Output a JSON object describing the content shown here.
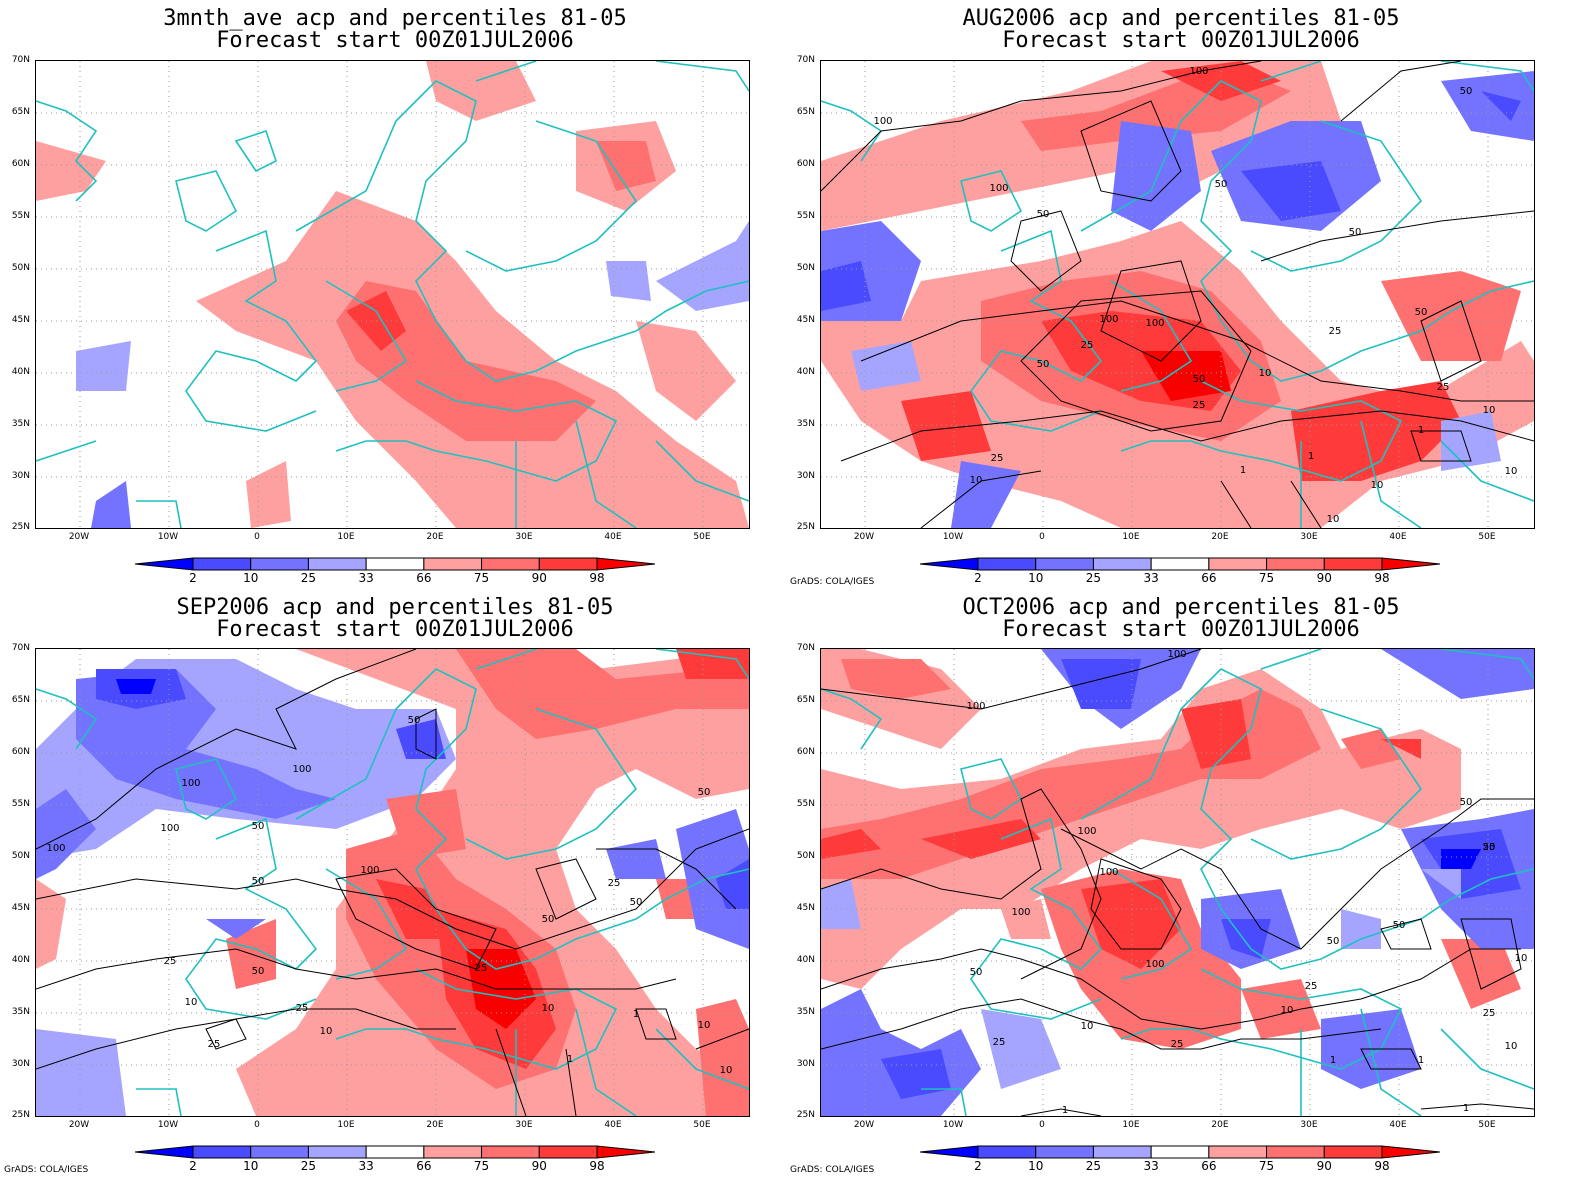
{
  "panels": [
    {
      "id": "p1",
      "title_line1": "3mnth_ave acp and percentiles 81-05",
      "title_line2": "Forecast start 00Z01JUL2006",
      "credit": ""
    },
    {
      "id": "p2",
      "title_line1": "AUG2006 acp and percentiles 81-05",
      "title_line2": "Forecast start 00Z01JUL2006",
      "credit": "GrADS: COLA/IGES"
    },
    {
      "id": "p3",
      "title_line1": "SEP2006 acp and percentiles 81-05",
      "title_line2": "Forecast start 00Z01JUL2006",
      "credit": "GrADS: COLA/IGES"
    },
    {
      "id": "p4",
      "title_line1": "OCT2006 acp and percentiles 81-05",
      "title_line2": "Forecast start 00Z01JUL2006",
      "credit": "GrADS: COLA/IGES"
    }
  ],
  "lat_labels": [
    "70N",
    "65N",
    "60N",
    "55N",
    "50N",
    "45N",
    "40N",
    "35N",
    "30N",
    "25N"
  ],
  "lon_labels": [
    "20W",
    "10W",
    "0",
    "10E",
    "20E",
    "30E",
    "40E",
    "50E"
  ],
  "colorbar": {
    "labels": [
      "2",
      "10",
      "25",
      "33",
      "66",
      "75",
      "90",
      "98"
    ],
    "colors": [
      "#0000ff",
      "#4a4aff",
      "#7373ff",
      "#a5a5ff",
      "#ffffff",
      "#ffa0a0",
      "#ff7070",
      "#ff3a3a",
      "#f80000"
    ]
  },
  "contour_labels": {
    "p2": [
      "100",
      "100",
      "50",
      "100",
      "50",
      "50",
      "50",
      "100",
      "100",
      "25",
      "50",
      "10",
      "50",
      "25",
      "25",
      "50",
      "10",
      "25",
      "1",
      "10",
      "25",
      "1",
      "1",
      "10",
      "10",
      "10"
    ],
    "p3": [
      "50",
      "100",
      "100",
      "100",
      "50",
      "50",
      "100",
      "100",
      "50",
      "25",
      "50",
      "25",
      "50",
      "25",
      "50",
      "10",
      "25",
      "10",
      "10",
      "25",
      "1",
      "10",
      "1",
      "10"
    ],
    "p4": [
      "100",
      "100",
      "50",
      "100",
      "100",
      "50",
      "100",
      "25",
      "50",
      "50",
      "10",
      "100",
      "25",
      "50",
      "10",
      "25",
      "25",
      "1",
      "25",
      "10",
      "10",
      "1",
      "1",
      "1"
    ]
  },
  "map_colors": {
    "coast": "#20c0c0",
    "contour": "#000000",
    "grid": "#999999"
  }
}
